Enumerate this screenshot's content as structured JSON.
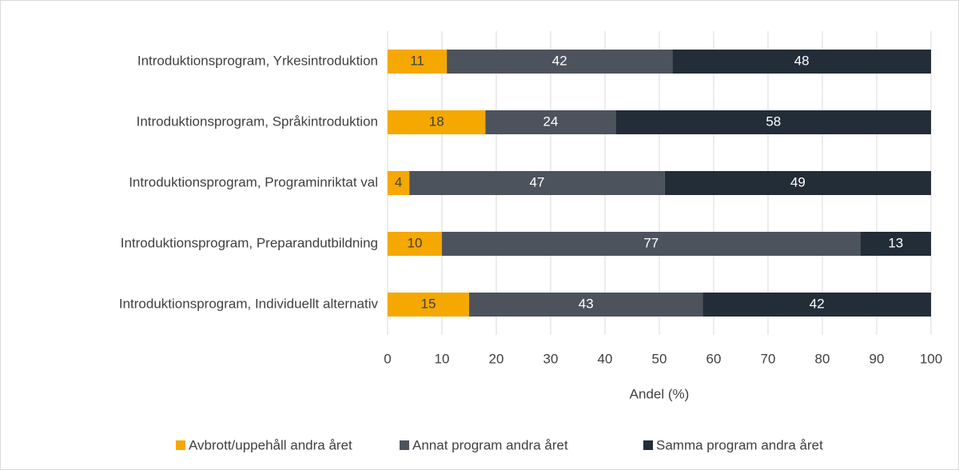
{
  "chart_data": {
    "type": "stacked_barh",
    "categories": [
      "Introduktionsprogram, Yrkesintroduktion",
      "Introduktionsprogram, Språkintroduktion",
      "Introduktionsprogram, Programinriktat val",
      "Introduktionsprogram, Preparandutbildning",
      "Introduktionsprogram, Individuellt alternativ"
    ],
    "series": [
      {
        "name": "Avbrott/uppehåll andra året",
        "color": "#f5a800",
        "values": [
          10.9,
          18,
          4,
          10,
          15
        ],
        "value_labels": [
          "11",
          "18",
          "4",
          "10",
          "15"
        ]
      },
      {
        "name": "Annat program andra året",
        "color": "#4d535c",
        "values": [
          41.5,
          24,
          47,
          77,
          43
        ],
        "value_labels": [
          "42",
          "24",
          "47",
          "77",
          "43"
        ]
      },
      {
        "name": "Samma program andra året",
        "color": "#232d38",
        "values": [
          47.6,
          58,
          49,
          13,
          42
        ],
        "value_labels": [
          "48",
          "58",
          "49",
          "13",
          "42"
        ]
      }
    ],
    "xlabel": "Andel (%)",
    "xlim": [
      0,
      100
    ],
    "xticks": [
      0,
      10,
      20,
      30,
      40,
      50,
      60,
      70,
      80,
      90,
      100
    ],
    "grid": true,
    "legend": "bottom"
  }
}
